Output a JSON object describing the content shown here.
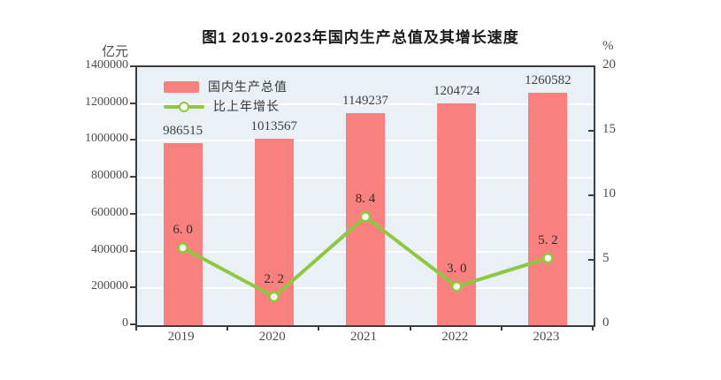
{
  "title": "图1  2019-2023年国内生产总值及其增长速度",
  "left_axis": {
    "unit": "亿元",
    "ticks": [
      "1400000",
      "1200000",
      "1000000",
      "800000",
      "600000",
      "400000",
      "200000",
      "0"
    ],
    "min": 0,
    "max": 1400000
  },
  "right_axis": {
    "unit": "%",
    "ticks": [
      "20",
      "15",
      "10",
      "5",
      "0"
    ],
    "min": 0,
    "max": 20
  },
  "legend": {
    "bar_label": "国内生产总值",
    "line_label": "比上年增长",
    "position": "top-left-inside"
  },
  "colors": {
    "bar": "#f8807e",
    "line": "#8fc740",
    "marker_fill": "#fdfff2",
    "plot_background": "#e9f1f6",
    "gridline": "#ffffff",
    "axis_border": "#3d3d3d",
    "bar_value_text": "#3f3f3f",
    "growth_value_text": "#3a2826"
  },
  "chart_data": {
    "type": "bar",
    "subtype": "bar+line-combo",
    "title": "图1  2019-2023年国内生产总值及其增长速度",
    "categories": [
      "2019",
      "2020",
      "2021",
      "2022",
      "2023"
    ],
    "series": [
      {
        "name": "国内生产总值",
        "type": "bar",
        "axis": "left",
        "values": [
          986515,
          1013567,
          1149237,
          1204724,
          1260582
        ],
        "labels": [
          "986515",
          "1013567",
          "1149237",
          "1204724",
          "1260582"
        ]
      },
      {
        "name": "比上年增长",
        "type": "line",
        "axis": "right",
        "values": [
          6.0,
          2.2,
          8.4,
          3.0,
          5.2
        ],
        "labels": [
          "6. 0",
          "2. 2",
          "8. 4",
          "3. 0",
          "5. 2"
        ]
      }
    ],
    "ylabel_left": "亿元",
    "ylabel_right": "%",
    "ylim_left": [
      0,
      1400000
    ],
    "ylim_right": [
      0,
      20
    ],
    "grid": true,
    "legend_position": "top-left-inside"
  }
}
